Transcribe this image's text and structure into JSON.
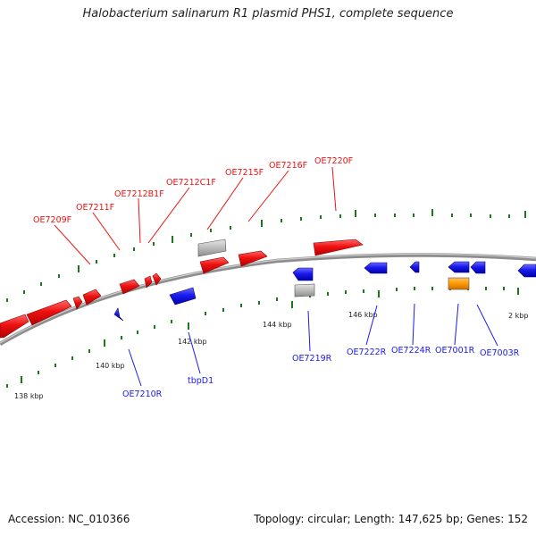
{
  "title": "Halobacterium salinarum R1 plasmid PHS1, complete sequence",
  "accession": "Accession: NC_010366",
  "summary": "Topology: circular; Length: 147,625 bp; Genes: 152",
  "colors": {
    "forward": "#ee1111",
    "reverse": "#1a1aee",
    "other": "#bbbbbb",
    "orange": "#ff9900",
    "tick": "#1a7a1a",
    "backbone": "#888888"
  },
  "ruler": [
    {
      "label": "138 kbp"
    },
    {
      "label": "140 kbp"
    },
    {
      "label": "142 kbp"
    },
    {
      "label": "144 kbp"
    },
    {
      "label": "146 kbp"
    },
    {
      "label": "2 kbp"
    }
  ],
  "forward_genes": [
    {
      "label": "OE7209F"
    },
    {
      "label": "OE7211F"
    },
    {
      "label": "OE7212B1F"
    },
    {
      "label": "OE7212C1F"
    },
    {
      "label": "OE7215F"
    },
    {
      "label": "OE7216F"
    },
    {
      "label": "OE7220F"
    }
  ],
  "reverse_genes": [
    {
      "label": "OE7210R"
    },
    {
      "label": "tbpD1"
    },
    {
      "label": "OE7219R"
    },
    {
      "label": "OE7222R"
    },
    {
      "label": "OE7224R"
    },
    {
      "label": "OE7001R"
    },
    {
      "label": "OE7003R"
    }
  ]
}
